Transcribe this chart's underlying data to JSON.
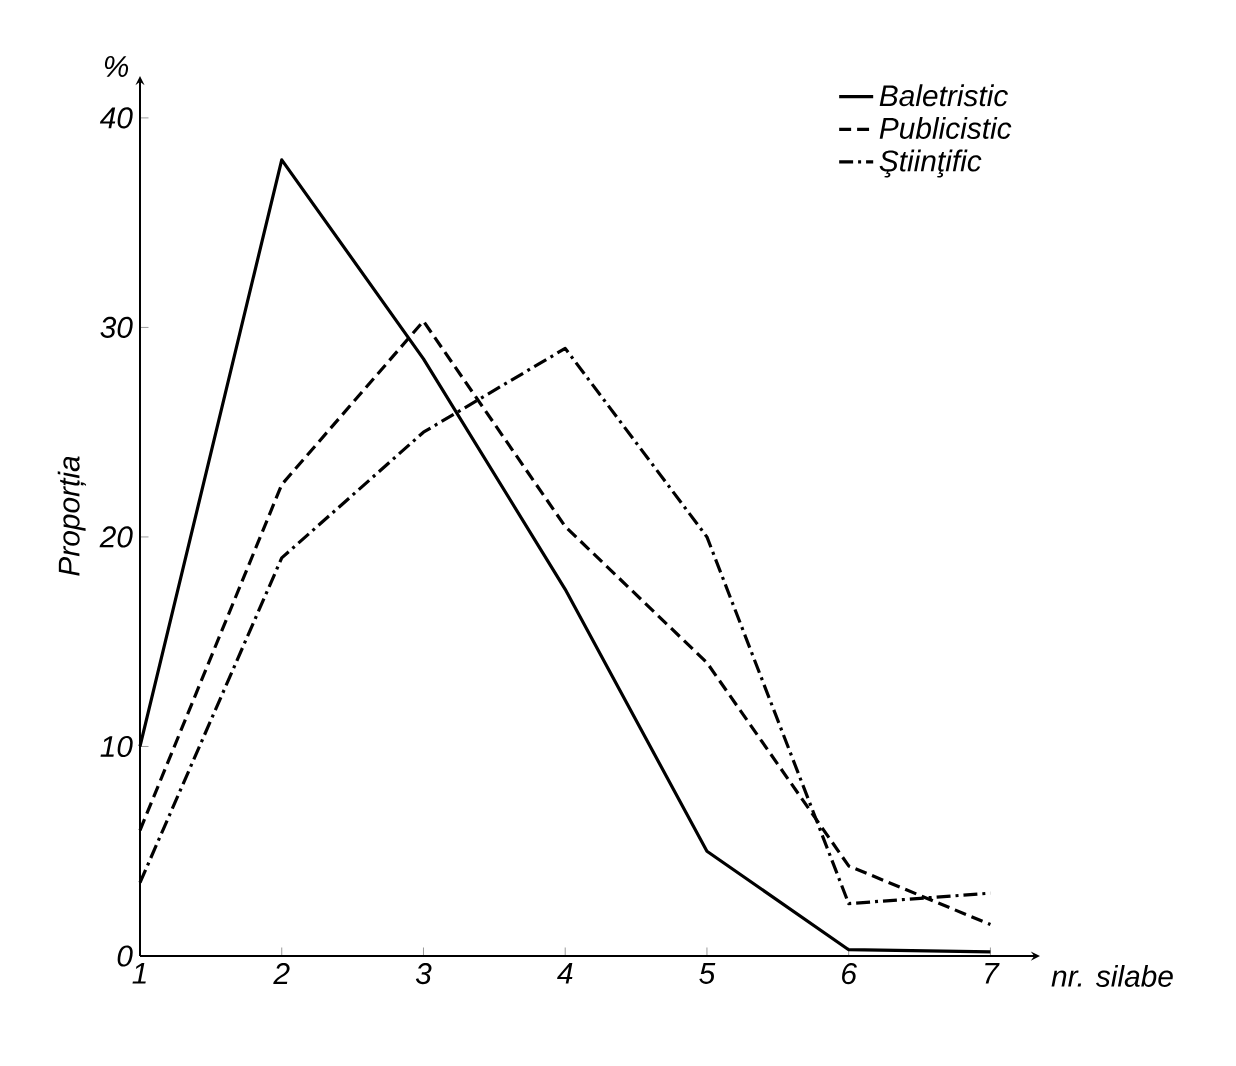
{
  "chart_data": {
    "type": "line",
    "xlabel": "nr. silabe",
    "ylabel": "Proporția",
    "annotations": [
      "%"
    ],
    "x": [
      1,
      2,
      3,
      4,
      5,
      6,
      7
    ],
    "xlim": [
      1,
      7.35
    ],
    "xticks": [
      1,
      2,
      3,
      4,
      5,
      6,
      7
    ],
    "ylim": [
      0,
      42
    ],
    "yticks": [
      0,
      10,
      20,
      30,
      40
    ],
    "series": [
      {
        "name": "Baletristic",
        "color": "#000000",
        "line_style": "solid",
        "values": [
          10,
          38,
          28.5,
          17.5,
          5,
          0.3,
          0.2
        ]
      },
      {
        "name": "Publicistic",
        "color": "#000000",
        "line_style": "dashed",
        "values": [
          6,
          22.5,
          30.3,
          20.5,
          14,
          4.3,
          1.5
        ]
      },
      {
        "name": "Ştiinţific",
        "color": "#000000",
        "line_style": "dashdot",
        "values": [
          3.5,
          19,
          25,
          29,
          20,
          2.5,
          3
        ]
      }
    ],
    "grid": false,
    "legend": "top right",
    "marker": "none"
  }
}
